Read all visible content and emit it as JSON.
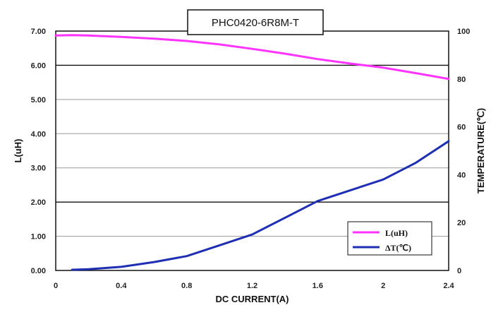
{
  "chart_data": {
    "type": "line",
    "title": "PHC0420-6R8M-T",
    "xlabel": "DC CURRENT(A)",
    "ylabel": "L(uH)",
    "y2label": "TEMPERATURE(℃)",
    "xlim": [
      0,
      2.4
    ],
    "ylim": [
      0,
      7
    ],
    "y2lim": [
      0,
      100
    ],
    "x_ticks": [
      "0",
      "0.4",
      "0.8",
      "1.2",
      "1.6",
      "2",
      "2.4"
    ],
    "y_ticks": [
      "0.00",
      "1.00",
      "2.00",
      "3.00",
      "4.00",
      "5.00",
      "6.00",
      "7.00"
    ],
    "y2_ticks": [
      "0",
      "20",
      "40",
      "60",
      "80",
      "100"
    ],
    "grid": true,
    "legend_position": "bottom-right",
    "series": [
      {
        "name": "L(uH)",
        "axis": "left",
        "color": "#ff33ff",
        "x": [
          0,
          0.1,
          0.2,
          0.4,
          0.6,
          0.8,
          1.0,
          1.2,
          1.4,
          1.6,
          1.8,
          2.0,
          2.2,
          2.4
        ],
        "y": [
          6.87,
          6.88,
          6.87,
          6.83,
          6.78,
          6.71,
          6.61,
          6.48,
          6.34,
          6.18,
          6.05,
          5.93,
          5.77,
          5.6
        ]
      },
      {
        "name": "ΔT(℃)",
        "axis": "right",
        "color": "#1f2fb3",
        "x": [
          0.1,
          0.2,
          0.4,
          0.6,
          0.8,
          1.0,
          1.2,
          1.4,
          1.6,
          1.8,
          2.0,
          2.2,
          2.4
        ],
        "y": [
          0.3,
          0.5,
          1.5,
          3.5,
          6,
          10.5,
          15,
          22,
          29,
          33.5,
          38,
          45,
          54
        ]
      }
    ]
  }
}
